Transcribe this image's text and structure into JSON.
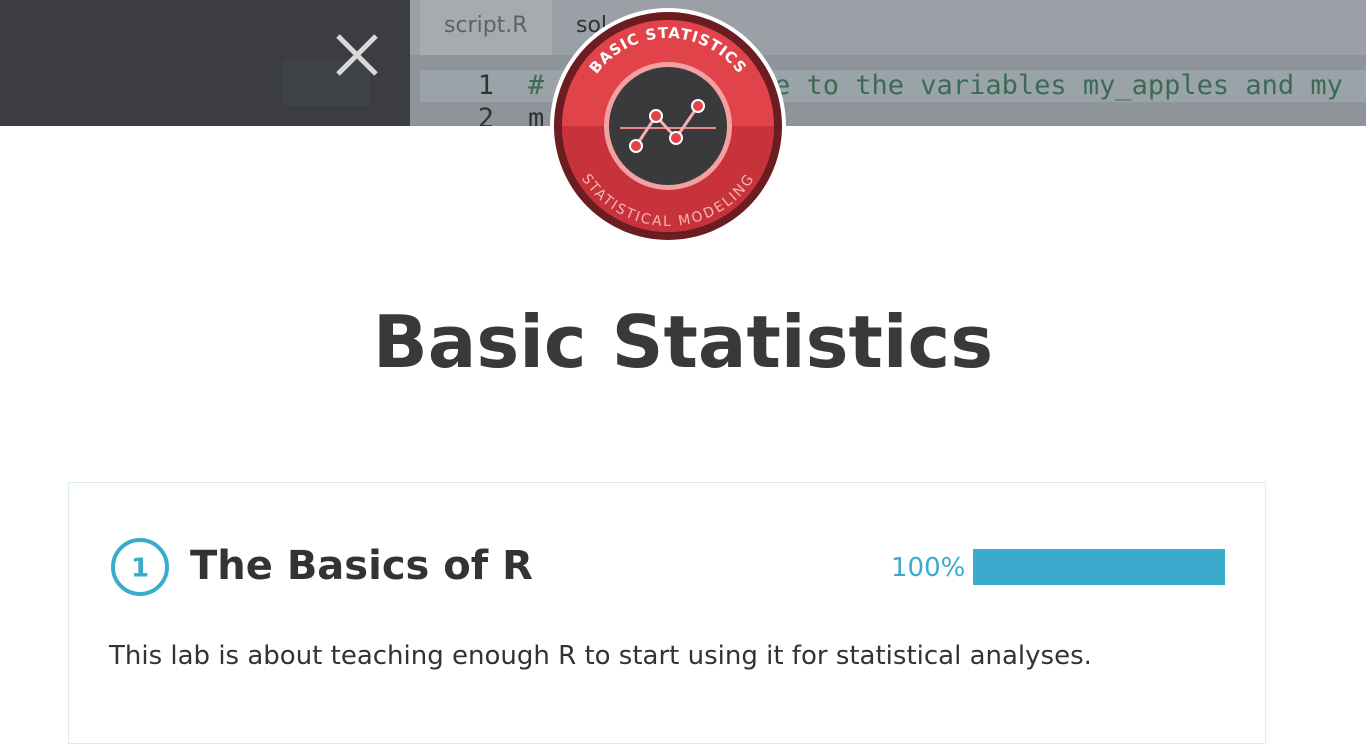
{
  "editor": {
    "tabs": [
      "script.R",
      "sol"
    ],
    "line_numbers": [
      "1",
      "2"
    ],
    "code_lines": [
      "#",
      "e to the variables my_apples and my",
      "m"
    ]
  },
  "badge": {
    "top_text": "BASIC STATISTICS",
    "bottom_text": "STATISTICAL MODELING"
  },
  "course": {
    "title": "Basic Statistics"
  },
  "chapter": {
    "number": "1",
    "title": "The Basics of R",
    "progress": {
      "value": 100,
      "label": "100%"
    },
    "description": "This lab is about teaching enough R to start using it for statistical analyses."
  }
}
